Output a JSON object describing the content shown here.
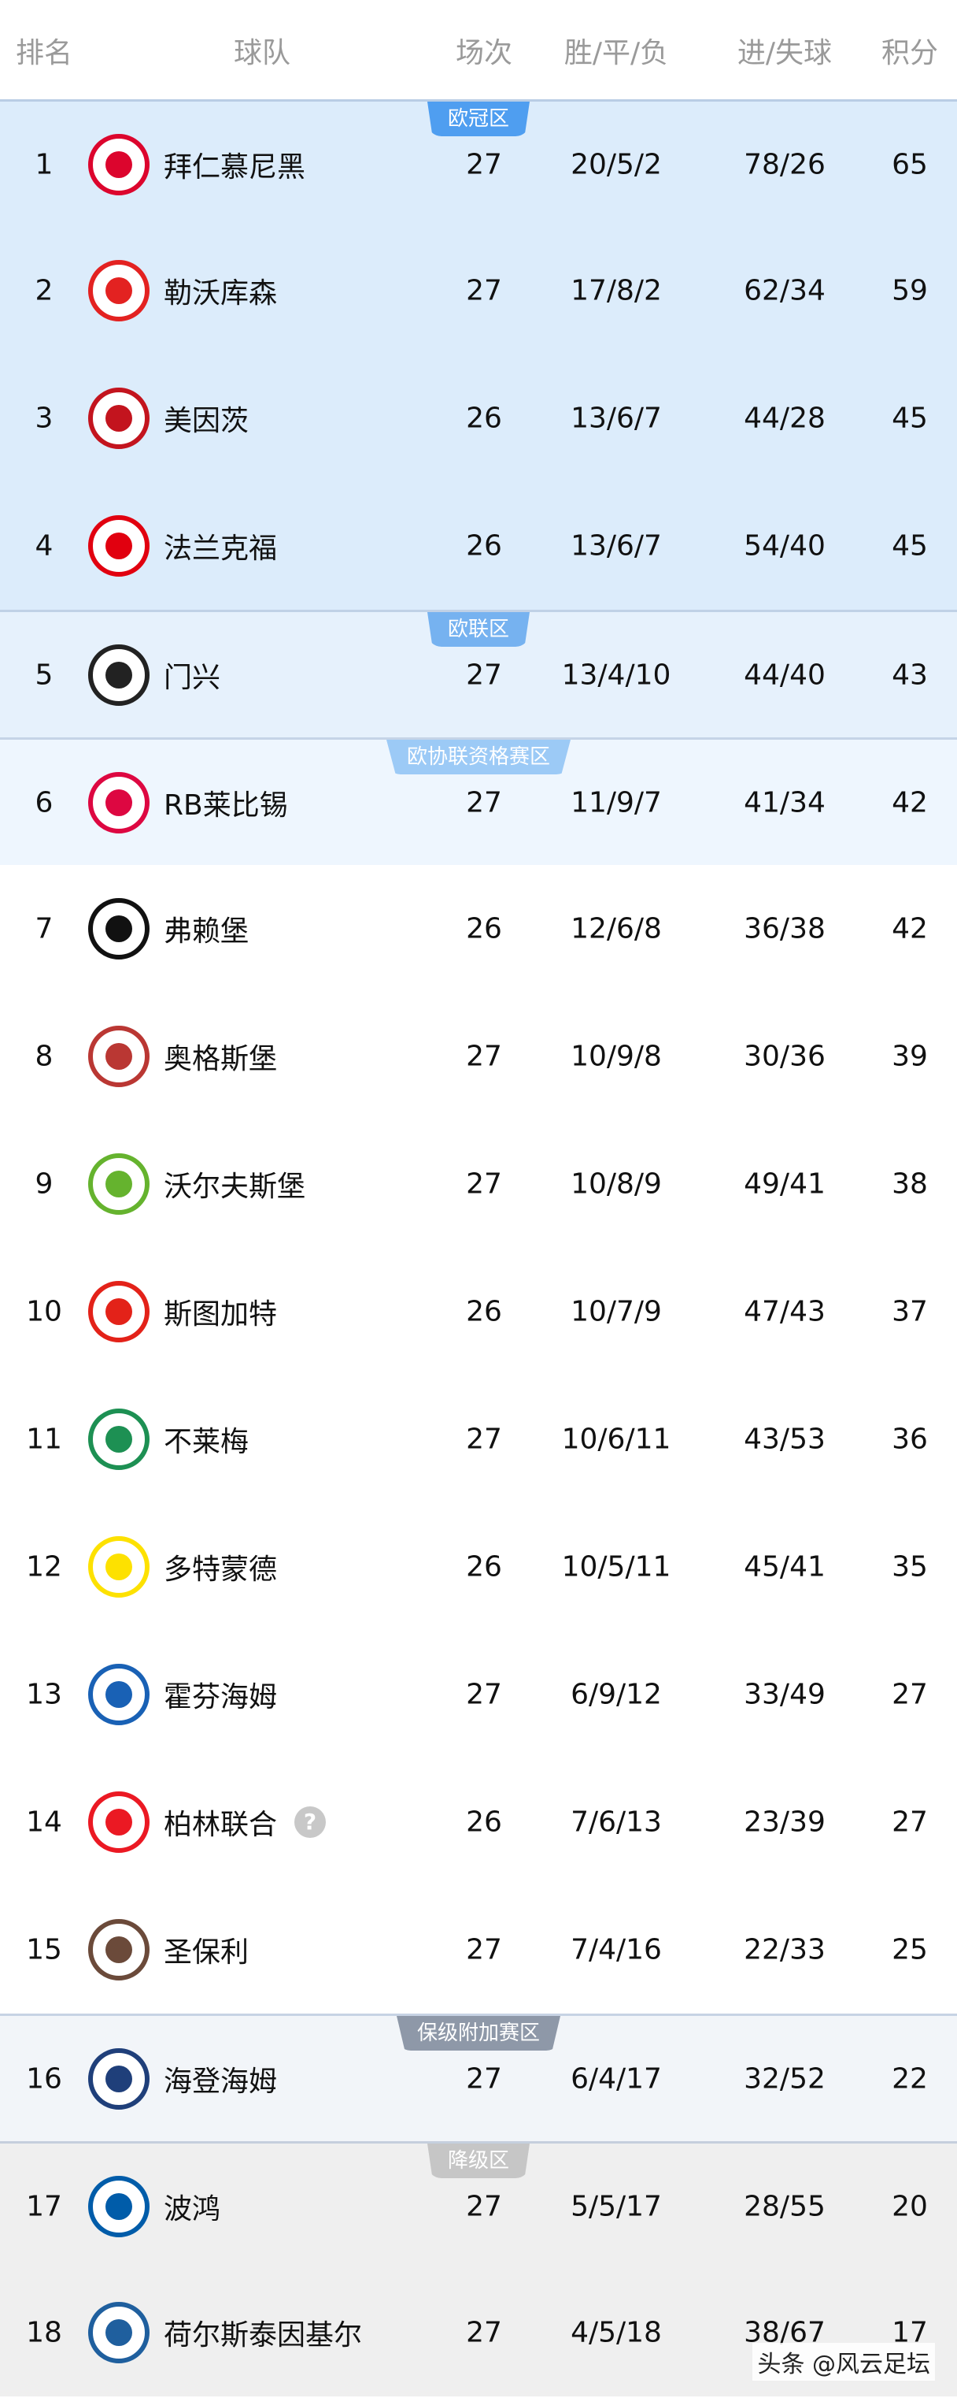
{
  "header": {
    "rank": "排名",
    "team": "球队",
    "played": "场次",
    "wdl": "胜/平/负",
    "goals": "进/失球",
    "points": "积分"
  },
  "zones": {
    "ucl": {
      "label": "欧冠区",
      "bg": "#dcecfb",
      "badge": "#4f9ef0"
    },
    "uel": {
      "label": "欧联区",
      "bg": "#e6f1fc",
      "badge": "#76b2f0"
    },
    "uecl": {
      "label": "欧协联资格赛区",
      "bg": "#eef6fe",
      "badge": "#9ccaf6"
    },
    "none": {
      "label": "",
      "bg": "#ffffff",
      "badge": ""
    },
    "playoff": {
      "label": "保级附加赛区",
      "bg": "#f2f5f9",
      "badge": "#8e98a8"
    },
    "releg": {
      "label": "降级区",
      "bg": "#efefef",
      "badge": "#c6c6c6"
    }
  },
  "rows": [
    {
      "rank": "1",
      "team": "拜仁慕尼黑",
      "played": "27",
      "wdl": "20/5/2",
      "goals": "78/26",
      "points": "65",
      "zone": "ucl",
      "logo_color": "#dc052d",
      "logo_icon": "bayern-logo"
    },
    {
      "rank": "2",
      "team": "勒沃库森",
      "played": "27",
      "wdl": "17/8/2",
      "goals": "62/34",
      "points": "59",
      "zone": "ucl",
      "logo_color": "#e32221",
      "logo_icon": "leverkusen-logo"
    },
    {
      "rank": "3",
      "team": "美因茨",
      "played": "26",
      "wdl": "13/6/7",
      "goals": "44/28",
      "points": "45",
      "zone": "ucl",
      "logo_color": "#c3141e",
      "logo_icon": "mainz-logo"
    },
    {
      "rank": "4",
      "team": "法兰克福",
      "played": "26",
      "wdl": "13/6/7",
      "goals": "54/40",
      "points": "45",
      "zone": "ucl",
      "logo_color": "#e1000f",
      "logo_icon": "frankfurt-logo"
    },
    {
      "rank": "5",
      "team": "门兴",
      "played": "27",
      "wdl": "13/4/10",
      "goals": "44/40",
      "points": "43",
      "zone": "uel",
      "logo_color": "#222222",
      "logo_icon": "gladbach-logo"
    },
    {
      "rank": "6",
      "team": "RB莱比锡",
      "played": "27",
      "wdl": "11/9/7",
      "goals": "41/34",
      "points": "42",
      "zone": "uecl",
      "logo_color": "#dd0741",
      "logo_icon": "leipzig-logo"
    },
    {
      "rank": "7",
      "team": "弗赖堡",
      "played": "26",
      "wdl": "12/6/8",
      "goals": "36/38",
      "points": "42",
      "zone": "none",
      "logo_color": "#111111",
      "logo_icon": "freiburg-logo"
    },
    {
      "rank": "8",
      "team": "奥格斯堡",
      "played": "27",
      "wdl": "10/9/8",
      "goals": "30/36",
      "points": "39",
      "zone": "none",
      "logo_color": "#ba3733",
      "logo_icon": "augsburg-logo"
    },
    {
      "rank": "9",
      "team": "沃尔夫斯堡",
      "played": "27",
      "wdl": "10/8/9",
      "goals": "49/41",
      "points": "38",
      "zone": "none",
      "logo_color": "#65b32e",
      "logo_icon": "wolfsburg-logo"
    },
    {
      "rank": "10",
      "team": "斯图加特",
      "played": "26",
      "wdl": "10/7/9",
      "goals": "47/43",
      "points": "37",
      "zone": "none",
      "logo_color": "#e32219",
      "logo_icon": "stuttgart-logo"
    },
    {
      "rank": "11",
      "team": "不莱梅",
      "played": "27",
      "wdl": "10/6/11",
      "goals": "43/53",
      "points": "36",
      "zone": "none",
      "logo_color": "#1d9053",
      "logo_icon": "bremen-logo"
    },
    {
      "rank": "12",
      "team": "多特蒙德",
      "played": "26",
      "wdl": "10/5/11",
      "goals": "45/41",
      "points": "35",
      "zone": "none",
      "logo_color": "#fde100",
      "logo_icon": "dortmund-logo"
    },
    {
      "rank": "13",
      "team": "霍芬海姆",
      "played": "27",
      "wdl": "6/9/12",
      "goals": "33/49",
      "points": "27",
      "zone": "none",
      "logo_color": "#1961b5",
      "logo_icon": "hoffenheim-logo"
    },
    {
      "rank": "14",
      "team": "柏林联合",
      "played": "26",
      "wdl": "7/6/13",
      "goals": "23/39",
      "points": "27",
      "zone": "none",
      "logo_color": "#eb1923",
      "logo_icon": "union-logo",
      "help": "?"
    },
    {
      "rank": "15",
      "team": "圣保利",
      "played": "27",
      "wdl": "7/4/16",
      "goals": "22/33",
      "points": "25",
      "zone": "none",
      "logo_color": "#6b4a3a",
      "logo_icon": "stpauli-logo"
    },
    {
      "rank": "16",
      "team": "海登海姆",
      "played": "27",
      "wdl": "6/4/17",
      "goals": "32/52",
      "points": "22",
      "zone": "playoff",
      "logo_color": "#1f3f7a",
      "logo_icon": "heidenheim-logo"
    },
    {
      "rank": "17",
      "team": "波鸿",
      "played": "27",
      "wdl": "5/5/17",
      "goals": "28/55",
      "points": "20",
      "zone": "releg",
      "logo_color": "#005ca9",
      "logo_icon": "bochum-logo"
    },
    {
      "rank": "18",
      "team": "荷尔斯泰因基尔",
      "played": "27",
      "wdl": "4/5/18",
      "goals": "38/67",
      "points": "17",
      "zone": "releg",
      "logo_color": "#1f5f9e",
      "logo_icon": "kiel-logo"
    }
  ],
  "watermark": "头条 @风云足坛"
}
